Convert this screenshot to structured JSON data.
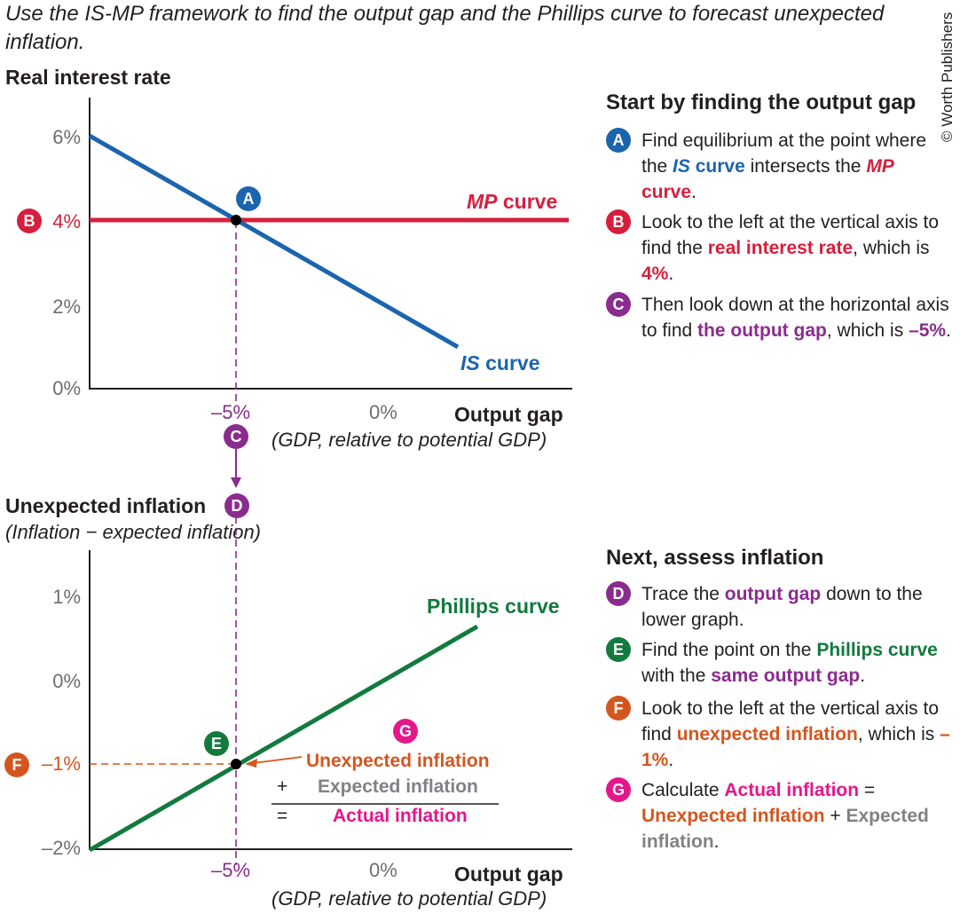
{
  "title": "Use the IS-MP framework to find the output gap and the Phillips curve to forecast unexpected inflation.",
  "credit": "© Worth Publishers",
  "colors": {
    "is": "#1b64ae",
    "mp": "#d51f3c",
    "gap": "#8a2c8e",
    "phillips": "#127a3e",
    "unexpected": "#d3561f",
    "actual": "#e5168c",
    "expected": "#808285"
  },
  "top_graph": {
    "y_title": "Real interest rate",
    "x_title": "Output gap",
    "x_subtitle": "(GDP, relative to potential GDP)",
    "y_ticks": [
      "6%",
      "4%",
      "2%",
      "0%"
    ],
    "x_ticks": [
      "–5%",
      "0%"
    ],
    "mp_label_italic": "MP",
    "mp_label_rest": " curve",
    "is_label_italic": "IS",
    "is_label_rest": " curve"
  },
  "bottom_graph": {
    "y_title": "Unexpected inflation",
    "y_subtitle": "(Inflation − expected inflation)",
    "x_title": "Output gap",
    "x_subtitle": "(GDP, relative to potential GDP)",
    "y_ticks": [
      "1%",
      "0%",
      "–1%",
      "–2%"
    ],
    "x_ticks": [
      "–5%",
      "0%"
    ],
    "phillips_label": "Phillips curve",
    "calc": {
      "unexpected": "Unexpected inflation",
      "plus": "+",
      "expected": "Expected inflation",
      "equals": "=",
      "actual": "Actual inflation"
    }
  },
  "badges": {
    "a": "A",
    "b": "B",
    "c": "C",
    "d": "D",
    "e": "E",
    "f": "F",
    "g": "G"
  },
  "panel1": {
    "heading": "Start by finding the output gap",
    "a": [
      "Find equilibrium at the point where the ",
      "IS",
      " curve",
      " intersects the ",
      "MP",
      " curve",
      "."
    ],
    "b": [
      "Look to the left at the vertical axis to find the ",
      "real interest rate",
      ", which is ",
      "4%",
      "."
    ],
    "c": [
      "Then look down at the horizontal axis to find ",
      "the output gap",
      ", which is ",
      "–5%",
      "."
    ]
  },
  "panel2": {
    "heading": "Next, assess inflation",
    "d": [
      "Trace the ",
      "output gap",
      " down to the lower graph."
    ],
    "e": [
      "Find the point on the ",
      "Phillips curve",
      " with the ",
      "same output gap",
      "."
    ],
    "f": [
      "Look to the left at the vertical axis to find ",
      "unexpected inflation",
      ", which is ",
      "–1%",
      "."
    ],
    "g": [
      "Calculate ",
      "Actual inflation",
      " = ",
      "Unexpected inflation",
      " + ",
      "Expected inflation",
      "."
    ]
  }
}
